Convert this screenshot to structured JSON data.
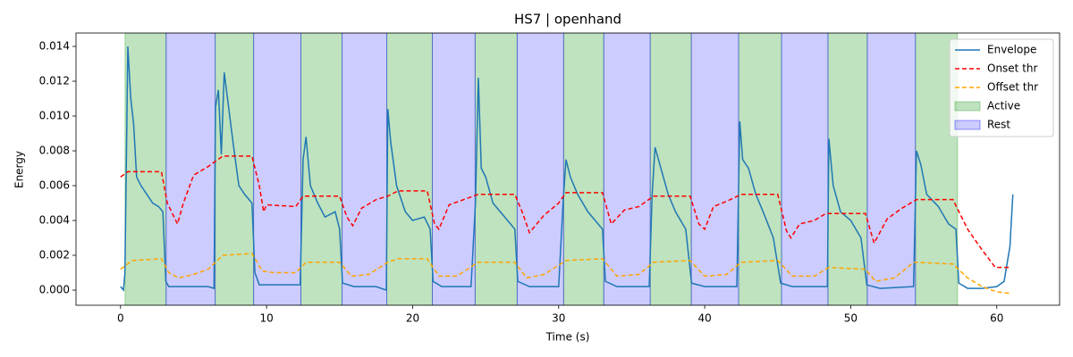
{
  "chart_data": {
    "type": "line",
    "title": "HS7 | openhand",
    "x_label": "Time (s)",
    "y_label": "Energy",
    "xlim": [
      -3.05,
      64.3
    ],
    "ylim": [
      -0.00087,
      0.01477
    ],
    "xticks": [
      0,
      10,
      20,
      30,
      40,
      50,
      60
    ],
    "yticks": [
      {
        "value": 0,
        "label": "0.000"
      },
      {
        "value": 0.002,
        "label": "0.002"
      },
      {
        "value": 0.004,
        "label": "0.004"
      },
      {
        "value": 0.006,
        "label": "0.006"
      },
      {
        "value": 0.008,
        "label": "0.008"
      },
      {
        "value": 0.01,
        "label": "0.010"
      },
      {
        "value": 0.012,
        "label": "0.012"
      },
      {
        "value": 0.014,
        "label": "0.014"
      }
    ],
    "legend": "upper right",
    "spans": [
      {
        "name": "Active",
        "color": "#2ca02c",
        "ranges": [
          [
            0.31,
            3.12
          ],
          [
            6.48,
            9.11
          ],
          [
            12.35,
            15.17
          ],
          [
            18.23,
            21.35
          ],
          [
            24.28,
            27.16
          ],
          [
            30.34,
            33.09
          ],
          [
            36.27,
            39.08
          ],
          [
            42.32,
            45.26
          ],
          [
            48.44,
            51.13
          ],
          [
            54.43,
            57.31
          ]
        ]
      },
      {
        "name": "Rest",
        "color": "#0000ff",
        "ranges": [
          [
            3.12,
            6.48
          ],
          [
            9.11,
            12.35
          ],
          [
            15.17,
            18.23
          ],
          [
            21.35,
            24.28
          ],
          [
            27.16,
            30.34
          ],
          [
            33.09,
            36.27
          ],
          [
            39.08,
            42.32
          ],
          [
            45.26,
            48.44
          ],
          [
            51.13,
            54.43
          ]
        ]
      }
    ],
    "series": [
      {
        "name": "Envelope",
        "color": "#1f77b4",
        "dash": false,
        "x": [
          0,
          0.2,
          0.3,
          0.5,
          0.7,
          0.9,
          1.1,
          1.4,
          1.8,
          2.2,
          2.6,
          2.9,
          3.1,
          3.3,
          4,
          5,
          6,
          6.4,
          6.5,
          6.7,
          6.9,
          7.1,
          7.4,
          7.7,
          8.1,
          8.5,
          9.0,
          9.2,
          9.5,
          10.5,
          12,
          12.3,
          12.5,
          12.7,
          13,
          13.5,
          14,
          14.7,
          15,
          15.2,
          16,
          17.5,
          18.2,
          18.3,
          18.5,
          18.9,
          19.5,
          20,
          20.8,
          21.2,
          21.4,
          22,
          24,
          24.3,
          24.5,
          24.7,
          25,
          25.5,
          26,
          26.5,
          27,
          27.2,
          28,
          30,
          30.3,
          30.5,
          30.8,
          31.3,
          32,
          32.5,
          33,
          33.2,
          34,
          36.2,
          36.4,
          36.6,
          37,
          37.5,
          38,
          38.7,
          39.1,
          40,
          42.2,
          42.4,
          42.6,
          43,
          43.5,
          44,
          44.7,
          45.2,
          46,
          48.4,
          48.5,
          48.8,
          49.3,
          50,
          50.7,
          51.1,
          52,
          54.3,
          54.5,
          54.8,
          55.2,
          56,
          56.7,
          57.2,
          57.4,
          58,
          59,
          60,
          60.5,
          60.9,
          61.1
        ],
        "values": [
          0.0002,
          0.0,
          0.001,
          0.014,
          0.011,
          0.0095,
          0.0065,
          0.006,
          0.0055,
          0.005,
          0.0048,
          0.0045,
          0.0005,
          0.0002,
          0.0002,
          0.0002,
          0.0002,
          0.0001,
          0.0105,
          0.0115,
          0.0078,
          0.0125,
          0.0105,
          0.0085,
          0.006,
          0.0055,
          0.005,
          0.001,
          0.0003,
          0.0003,
          0.0003,
          0.0003,
          0.0075,
          0.0088,
          0.006,
          0.005,
          0.0042,
          0.0045,
          0.0035,
          0.0004,
          0.0002,
          0.0002,
          0.0,
          0.0104,
          0.0085,
          0.006,
          0.0045,
          0.004,
          0.0042,
          0.0035,
          0.0005,
          0.0002,
          0.0002,
          0.005,
          0.0122,
          0.007,
          0.0065,
          0.005,
          0.0045,
          0.004,
          0.0035,
          0.0005,
          0.0002,
          0.0002,
          0.005,
          0.0075,
          0.0065,
          0.0055,
          0.0045,
          0.004,
          0.0035,
          0.0005,
          0.0002,
          0.0002,
          0.0055,
          0.0082,
          0.007,
          0.0055,
          0.0045,
          0.0035,
          0.0004,
          0.0002,
          0.0002,
          0.0097,
          0.0075,
          0.007,
          0.0055,
          0.0045,
          0.003,
          0.0004,
          0.0002,
          0.0002,
          0.0087,
          0.006,
          0.0045,
          0.004,
          0.003,
          0.0003,
          0.0001,
          0.0002,
          0.008,
          0.0072,
          0.0055,
          0.0048,
          0.0038,
          0.0035,
          0.0004,
          0.0001,
          0.0001,
          0.0002,
          0.0005,
          0.0025,
          0.0055
        ]
      },
      {
        "name": "Onset thr",
        "color": "#ff0000",
        "dash": true,
        "x": [
          0,
          0.5,
          2.8,
          3.2,
          3.9,
          4.3,
          5,
          6,
          7,
          9,
          9.5,
          9.8,
          10,
          12,
          12.5,
          15,
          15.5,
          15.9,
          16.5,
          17.5,
          18.3,
          19,
          21,
          21.5,
          21.8,
          22.5,
          23.5,
          24.5,
          27,
          27.5,
          28,
          29,
          30,
          30.5,
          33,
          33.6,
          34.5,
          35.5,
          36.5,
          39,
          39.6,
          40,
          40.6,
          41.5,
          42.5,
          45,
          45.6,
          45.9,
          46.5,
          47.5,
          48.3,
          51,
          51.6,
          52.5,
          53.5,
          54.5,
          57,
          58,
          59,
          59.9,
          61
        ],
        "values": [
          0.0065,
          0.0068,
          0.0068,
          0.005,
          0.0038,
          0.005,
          0.0066,
          0.0071,
          0.0077,
          0.0077,
          0.006,
          0.0045,
          0.0049,
          0.0048,
          0.0054,
          0.0054,
          0.0042,
          0.0037,
          0.0047,
          0.0052,
          0.0054,
          0.0057,
          0.0057,
          0.0038,
          0.0035,
          0.0049,
          0.0052,
          0.0055,
          0.0055,
          0.0045,
          0.0033,
          0.0043,
          0.005,
          0.0056,
          0.0056,
          0.0038,
          0.0046,
          0.0048,
          0.0054,
          0.0054,
          0.0038,
          0.0035,
          0.0048,
          0.0051,
          0.0055,
          0.0055,
          0.0034,
          0.003,
          0.0038,
          0.004,
          0.0044,
          0.0044,
          0.0027,
          0.0041,
          0.0047,
          0.0052,
          0.0052,
          0.0035,
          0.0023,
          0.0013,
          0.0013
        ]
      },
      {
        "name": "Offset thr",
        "color": "#ffa500",
        "dash": true,
        "x": [
          0,
          0.8,
          2.8,
          3.3,
          4,
          5,
          6,
          7,
          9,
          9.7,
          10.5,
          12,
          12.7,
          15,
          15.8,
          17,
          18.3,
          19,
          21,
          21.8,
          23,
          24.5,
          27,
          27.8,
          29,
          30.5,
          33,
          34,
          35.5,
          36.5,
          39,
          40,
          41.5,
          42.5,
          45,
          46,
          47.5,
          48.5,
          51,
          51.7,
          53,
          54.3,
          57,
          58,
          59,
          60,
          61
        ],
        "values": [
          0.0012,
          0.0017,
          0.0018,
          0.001,
          0.0007,
          0.0009,
          0.0012,
          0.002,
          0.0021,
          0.0011,
          0.001,
          0.001,
          0.0016,
          0.0016,
          0.0008,
          0.0009,
          0.0016,
          0.0018,
          0.0018,
          0.0008,
          0.0008,
          0.0016,
          0.0016,
          0.0007,
          0.0009,
          0.0017,
          0.0018,
          0.0008,
          0.0009,
          0.0016,
          0.0017,
          0.0008,
          0.0009,
          0.0016,
          0.0017,
          0.0008,
          0.0008,
          0.0013,
          0.0012,
          0.0005,
          0.0007,
          0.0016,
          0.0015,
          0.0007,
          0.0002,
          -0.0001,
          -0.0002
        ]
      }
    ]
  }
}
